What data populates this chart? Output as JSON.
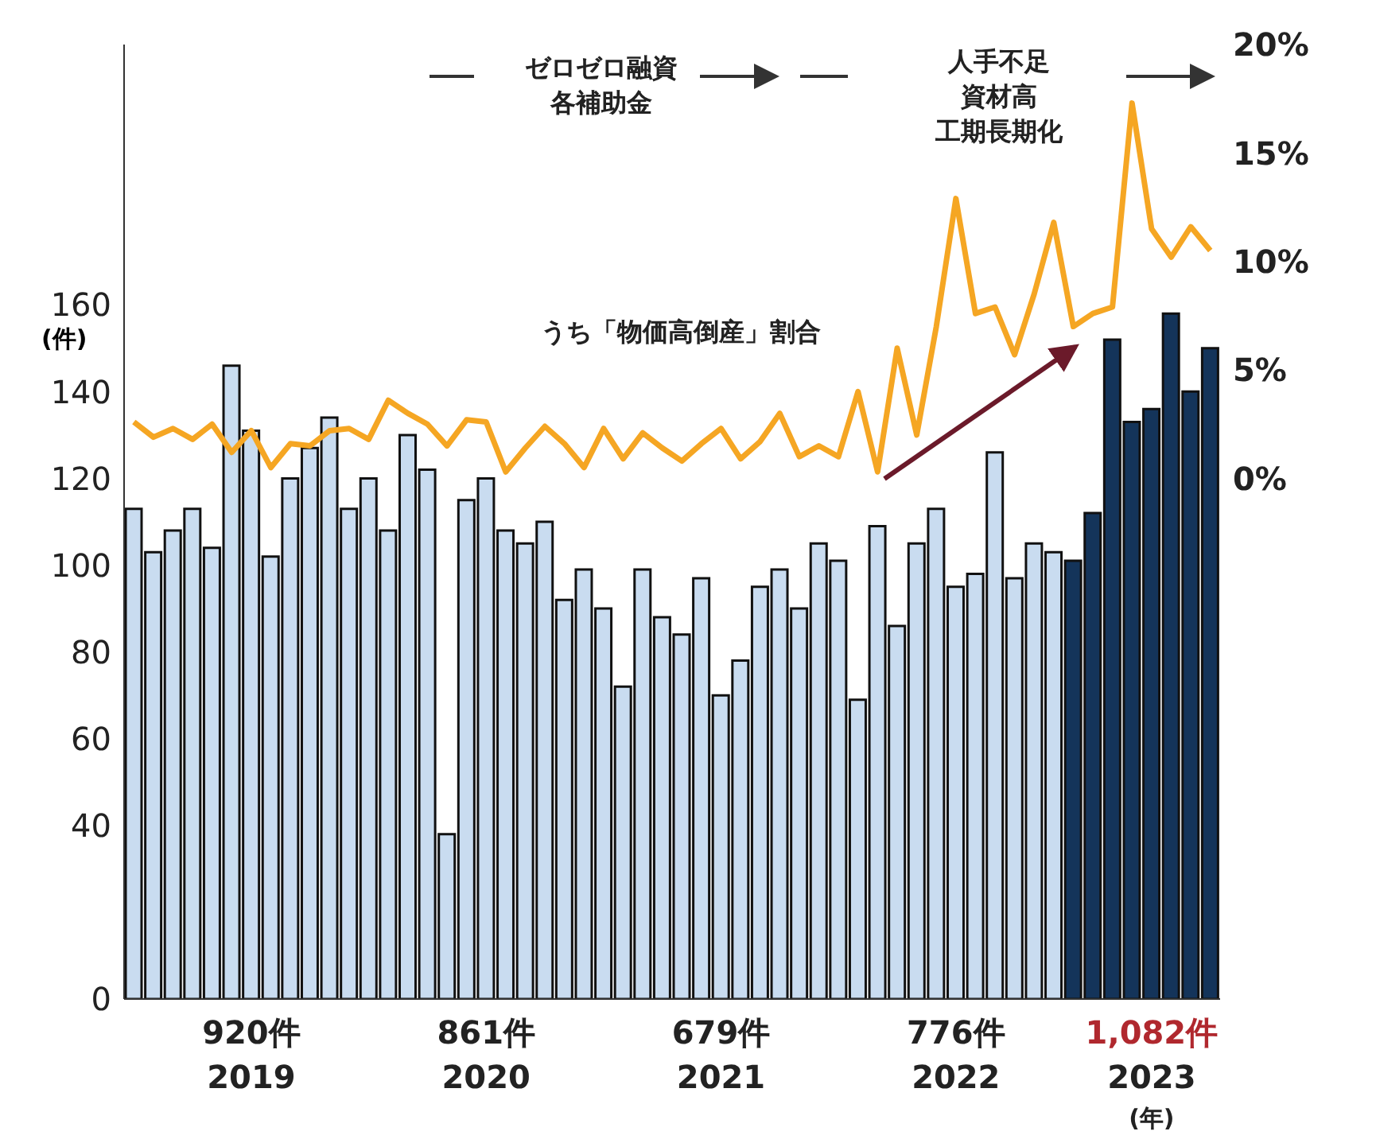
{
  "chart_data": {
    "type": "bar",
    "ylabel": "(件)",
    "categories": [
      null,
      null,
      null,
      null,
      null,
      null,
      "2019",
      null,
      null,
      null,
      null,
      null,
      null,
      null,
      null,
      null,
      null,
      null,
      "2020",
      null,
      null,
      null,
      null,
      null,
      null,
      null,
      null,
      null,
      null,
      null,
      "2021",
      null,
      null,
      null,
      null,
      null,
      null,
      null,
      null,
      null,
      null,
      null,
      "2022",
      null,
      null,
      null,
      null,
      null,
      null,
      null,
      null,
      null,
      "2023",
      null,
      null,
      null
    ],
    "series": [
      {
        "colors": [
          "#c9dcf0",
          "#c9dcf0",
          "#c9dcf0",
          "#c9dcf0",
          "#c9dcf0",
          "#c9dcf0",
          "#c9dcf0",
          "#c9dcf0",
          "#c9dcf0",
          "#c9dcf0",
          "#c9dcf0",
          "#c9dcf0",
          "#c9dcf0",
          "#c9dcf0",
          "#c9dcf0",
          "#c9dcf0",
          "#c9dcf0",
          "#c9dcf0",
          "#c9dcf0",
          "#c9dcf0",
          "#c9dcf0",
          "#c9dcf0",
          "#c9dcf0",
          "#c9dcf0",
          "#c9dcf0",
          "#c9dcf0",
          "#c9dcf0",
          "#c9dcf0",
          "#c9dcf0",
          "#c9dcf0",
          "#c9dcf0",
          "#c9dcf0",
          "#c9dcf0",
          "#c9dcf0",
          "#c9dcf0",
          "#c9dcf0",
          "#c9dcf0",
          "#c9dcf0",
          "#c9dcf0",
          "#c9dcf0",
          "#c9dcf0",
          "#c9dcf0",
          "#c9dcf0",
          "#c9dcf0",
          "#c9dcf0",
          "#c9dcf0",
          "#c9dcf0",
          "#c9dcf0",
          "#14345a",
          "#14345a",
          "#14345a",
          "#14345a",
          "#14345a",
          "#14345a",
          "#14345a",
          "#14345a"
        ],
        "values": [
          113,
          103,
          108,
          113,
          104,
          146,
          131,
          102,
          120,
          127,
          134,
          113,
          120,
          108,
          130,
          122,
          38,
          115,
          120,
          108,
          105,
          110,
          92,
          99,
          90,
          72,
          99,
          88,
          84,
          97,
          70,
          78,
          95,
          99,
          90,
          105,
          101,
          69,
          109,
          86,
          105,
          113,
          95,
          98,
          126,
          97,
          105,
          103,
          101,
          112,
          152,
          133,
          136,
          158,
          140,
          150
        ]
      },
      {
        "type": "line",
        "axis": "y2",
        "color": "#f5a623",
        "values": [
          2.6,
          1.9,
          2.3,
          1.8,
          2.5,
          1.2,
          2.2,
          0.5,
          1.6,
          1.5,
          2.2,
          2.3,
          1.8,
          3.6,
          3.0,
          2.5,
          1.5,
          2.7,
          2.6,
          0.3,
          1.4,
          2.4,
          1.6,
          0.5,
          2.3,
          0.9,
          2.1,
          1.4,
          0.8,
          1.6,
          2.3,
          0.9,
          1.7,
          3.0,
          1.0,
          1.5,
          1.0,
          4.0,
          0.3,
          6.0,
          2.0,
          7.0,
          12.9,
          7.6,
          7.9,
          5.7,
          8.5,
          11.8,
          7.0,
          7.6,
          7.9,
          17.3,
          11.5,
          10.2,
          11.6,
          10.5
        ]
      }
    ],
    "ylim": [
      0,
      220
    ],
    "yticks": [
      0,
      40,
      60,
      80,
      100,
      120,
      140,
      160
    ],
    "y2lim": [
      -24,
      20
    ],
    "y2ticks": [
      {
        "value": 0,
        "label": "0%"
      },
      {
        "value": 5,
        "label": "5%"
      },
      {
        "value": 10,
        "label": "10%"
      },
      {
        "value": 15,
        "label": "15%"
      },
      {
        "value": 20,
        "label": "20%"
      }
    ],
    "marker": "none",
    "grid": false,
    "legend": false,
    "annotations": [
      "ゼロゼロ融資各補助金",
      "人手不足資材高工期長期化",
      "うち「物価高倒産」割合",
      "920件",
      "861件",
      "679件",
      "776件",
      "1,082件",
      "(年)"
    ]
  }
}
